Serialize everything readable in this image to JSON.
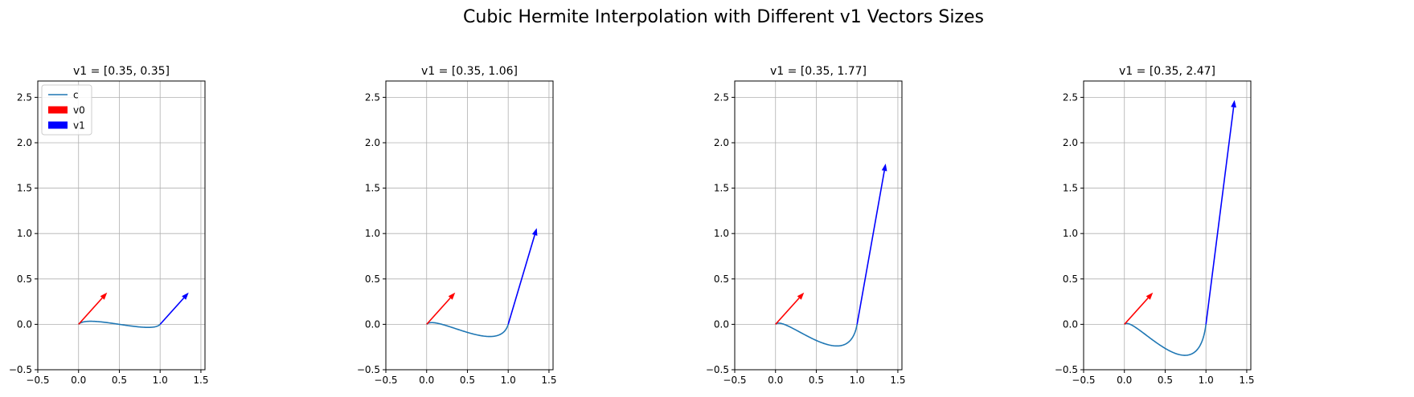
{
  "figure": {
    "suptitle": "Cubic Hermite Interpolation with Different v1 Vectors Sizes"
  },
  "colors": {
    "curve": "#1f77b4",
    "v0": "#ff0000",
    "v1": "#0000ff",
    "grid": "#b0b0b0"
  },
  "legend": {
    "placement": "upper left (first panel only)",
    "entries": [
      {
        "label": "c",
        "kind": "line",
        "color": "#1f77b4"
      },
      {
        "label": "v0",
        "kind": "patch",
        "color": "#ff0000"
      },
      {
        "label": "v1",
        "kind": "patch",
        "color": "#0000ff"
      }
    ]
  },
  "chart_data": [
    {
      "type": "line",
      "title": "v1 = [0.35, 0.35]",
      "p0": [
        0,
        0
      ],
      "p1": [
        1,
        0
      ],
      "v0": [
        0.35,
        0.35
      ],
      "v1": [
        0.35,
        0.35
      ],
      "xlim": [
        -0.5,
        1.55
      ],
      "ylim": [
        -0.5,
        2.68
      ],
      "xticks": [
        -0.5,
        0.0,
        0.5,
        1.0,
        1.5
      ],
      "yticks": [
        -0.5,
        0.0,
        0.5,
        1.0,
        1.5,
        2.0,
        2.5
      ],
      "xtick_labels": [
        "−0.5",
        "0.0",
        "0.5",
        "1.0",
        "1.5"
      ],
      "ytick_labels": [
        "−0.5",
        "0.0",
        "0.5",
        "1.0",
        "1.5",
        "2.0",
        "2.5"
      ],
      "grid": true,
      "legend": true
    },
    {
      "type": "line",
      "title": "v1 = [0.35, 1.06]",
      "p0": [
        0,
        0
      ],
      "p1": [
        1,
        0
      ],
      "v0": [
        0.35,
        0.35
      ],
      "v1": [
        0.35,
        1.06
      ],
      "xlim": [
        -0.5,
        1.55
      ],
      "ylim": [
        -0.5,
        2.68
      ],
      "xticks": [
        -0.5,
        0.0,
        0.5,
        1.0,
        1.5
      ],
      "yticks": [
        -0.5,
        0.0,
        0.5,
        1.0,
        1.5,
        2.0,
        2.5
      ],
      "xtick_labels": [
        "−0.5",
        "0.0",
        "0.5",
        "1.0",
        "1.5"
      ],
      "ytick_labels": [
        "−0.5",
        "0.0",
        "0.5",
        "1.0",
        "1.5",
        "2.0",
        "2.5"
      ],
      "grid": true,
      "legend": false
    },
    {
      "type": "line",
      "title": "v1 = [0.35, 1.77]",
      "p0": [
        0,
        0
      ],
      "p1": [
        1,
        0
      ],
      "v0": [
        0.35,
        0.35
      ],
      "v1": [
        0.35,
        1.77
      ],
      "xlim": [
        -0.5,
        1.55
      ],
      "ylim": [
        -0.5,
        2.68
      ],
      "xticks": [
        -0.5,
        0.0,
        0.5,
        1.0,
        1.5
      ],
      "yticks": [
        -0.5,
        0.0,
        0.5,
        1.0,
        1.5,
        2.0,
        2.5
      ],
      "xtick_labels": [
        "−0.5",
        "0.0",
        "0.5",
        "1.0",
        "1.5"
      ],
      "ytick_labels": [
        "−0.5",
        "0.0",
        "0.5",
        "1.0",
        "1.5",
        "2.0",
        "2.5"
      ],
      "grid": true,
      "legend": false
    },
    {
      "type": "line",
      "title": "v1 = [0.35, 2.47]",
      "p0": [
        0,
        0
      ],
      "p1": [
        1,
        0
      ],
      "v0": [
        0.35,
        0.35
      ],
      "v1": [
        0.35,
        2.47
      ],
      "xlim": [
        -0.5,
        1.55
      ],
      "ylim": [
        -0.5,
        2.68
      ],
      "xticks": [
        -0.5,
        0.0,
        0.5,
        1.0,
        1.5
      ],
      "yticks": [
        -0.5,
        0.0,
        0.5,
        1.0,
        1.5,
        2.0,
        2.5
      ],
      "xtick_labels": [
        "−0.5",
        "0.0",
        "0.5",
        "1.0",
        "1.5"
      ],
      "ytick_labels": [
        "−0.5",
        "0.0",
        "0.5",
        "1.0",
        "1.5",
        "2.0",
        "2.5"
      ],
      "grid": true,
      "legend": false
    }
  ]
}
